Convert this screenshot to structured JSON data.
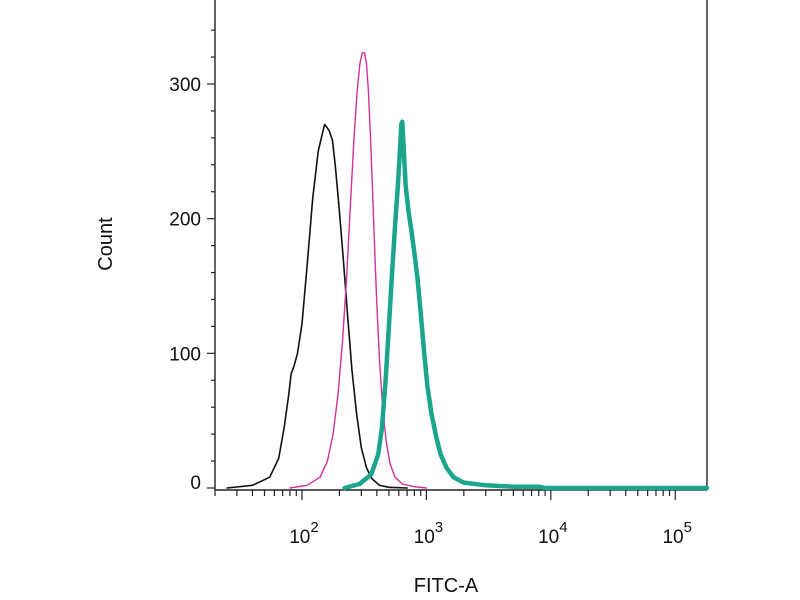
{
  "chart_data": {
    "type": "line",
    "title": "",
    "xlabel": "FITC-A",
    "ylabel": "Count",
    "xscale": "log",
    "xlim": [
      20,
      180000
    ],
    "ylim": [
      -5,
      360
    ],
    "grid": false,
    "legend": "none",
    "x_ticks": [
      {
        "value": 100,
        "base": "10",
        "exp": "2"
      },
      {
        "value": 1000,
        "base": "10",
        "exp": "3"
      },
      {
        "value": 10000,
        "base": "10",
        "exp": "4"
      },
      {
        "value": 100000,
        "base": "10",
        "exp": "5"
      }
    ],
    "y_ticks": [
      {
        "value": 0,
        "label": "0"
      },
      {
        "value": 100,
        "label": "100"
      },
      {
        "value": 200,
        "label": "200"
      },
      {
        "value": 300,
        "label": "300"
      }
    ],
    "series": [
      {
        "color": "#111111",
        "width": 1.6,
        "points": [
          [
            25,
            0
          ],
          [
            40,
            2
          ],
          [
            55,
            8
          ],
          [
            65,
            22
          ],
          [
            72,
            45
          ],
          [
            78,
            68
          ],
          [
            82,
            85
          ],
          [
            86,
            90
          ],
          [
            92,
            100
          ],
          [
            100,
            122
          ],
          [
            110,
            165
          ],
          [
            122,
            215
          ],
          [
            135,
            250
          ],
          [
            145,
            262
          ],
          [
            152,
            270
          ],
          [
            158,
            268
          ],
          [
            166,
            265
          ],
          [
            176,
            258
          ],
          [
            185,
            240
          ],
          [
            198,
            210
          ],
          [
            215,
            170
          ],
          [
            232,
            130
          ],
          [
            252,
            88
          ],
          [
            275,
            55
          ],
          [
            300,
            30
          ],
          [
            330,
            15
          ],
          [
            365,
            7
          ],
          [
            420,
            2
          ],
          [
            500,
            0.5
          ],
          [
            700,
            0
          ]
        ]
      },
      {
        "color": "#d0309a",
        "width": 1.4,
        "points": [
          [
            80,
            0
          ],
          [
            110,
            2
          ],
          [
            140,
            8
          ],
          [
            160,
            20
          ],
          [
            178,
            40
          ],
          [
            195,
            70
          ],
          [
            212,
            110
          ],
          [
            228,
            155
          ],
          [
            245,
            210
          ],
          [
            262,
            260
          ],
          [
            278,
            295
          ],
          [
            292,
            315
          ],
          [
            305,
            323
          ],
          [
            318,
            323
          ],
          [
            330,
            315
          ],
          [
            342,
            295
          ],
          [
            355,
            262
          ],
          [
            370,
            218
          ],
          [
            385,
            175
          ],
          [
            400,
            135
          ],
          [
            420,
            95
          ],
          [
            445,
            60
          ],
          [
            475,
            35
          ],
          [
            510,
            18
          ],
          [
            560,
            8
          ],
          [
            640,
            3
          ],
          [
            800,
            1
          ],
          [
            1000,
            0
          ]
        ]
      },
      {
        "color": "#1aa58c",
        "width": 4.5,
        "points": [
          [
            220,
            0
          ],
          [
            290,
            3
          ],
          [
            360,
            10
          ],
          [
            410,
            25
          ],
          [
            440,
            45
          ],
          [
            470,
            80
          ],
          [
            500,
            120
          ],
          [
            530,
            160
          ],
          [
            560,
            195
          ],
          [
            590,
            225
          ],
          [
            612,
            250
          ],
          [
            628,
            270
          ],
          [
            640,
            272
          ],
          [
            655,
            255
          ],
          [
            680,
            225
          ],
          [
            720,
            205
          ],
          [
            760,
            190
          ],
          [
            800,
            175
          ],
          [
            850,
            155
          ],
          [
            900,
            130
          ],
          [
            960,
            100
          ],
          [
            1020,
            75
          ],
          [
            1100,
            55
          ],
          [
            1200,
            38
          ],
          [
            1300,
            25
          ],
          [
            1450,
            15
          ],
          [
            1650,
            8
          ],
          [
            2000,
            4
          ],
          [
            3000,
            2
          ],
          [
            5000,
            1
          ],
          [
            8000,
            1
          ],
          [
            9000,
            0
          ],
          [
            180000,
            0
          ]
        ]
      }
    ]
  }
}
